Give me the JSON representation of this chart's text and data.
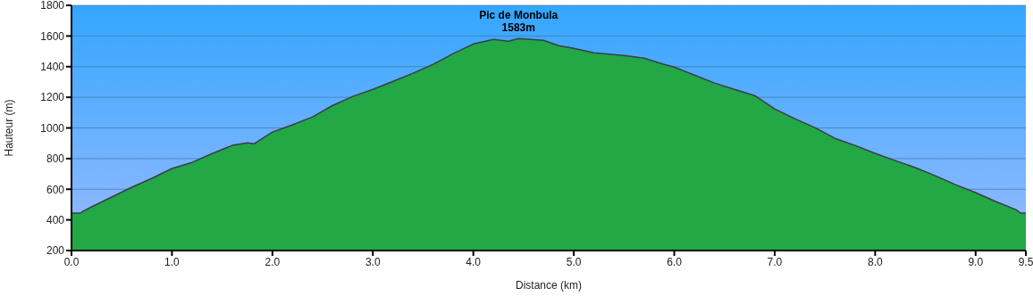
{
  "chart_data": {
    "type": "area",
    "xlabel": "Distance   (km)",
    "ylabel": "Hauteur (m)",
    "x": [
      0,
      0.09,
      0.12,
      0.2,
      0.4,
      0.6,
      0.8,
      1.0,
      1.2,
      1.4,
      1.6,
      1.75,
      1.82,
      2.0,
      2.2,
      2.4,
      2.6,
      2.8,
      3.0,
      3.2,
      3.4,
      3.6,
      3.8,
      4.0,
      4.2,
      4.35,
      4.45,
      4.7,
      4.85,
      5.0,
      5.2,
      5.5,
      5.7,
      5.9,
      6.0,
      6.2,
      6.4,
      6.6,
      6.8,
      7.0,
      7.2,
      7.4,
      7.6,
      7.8,
      8.0,
      8.2,
      8.4,
      8.6,
      8.8,
      9.0,
      9.2,
      9.4,
      9.45,
      9.5
    ],
    "series": [
      {
        "color": "#22a845",
        "values": [
          445,
          445,
          458,
          485,
          549,
          613,
          671,
          735,
          775,
          833,
          886,
          903,
          897,
          973,
          1020,
          1072,
          1147,
          1206,
          1252,
          1304,
          1357,
          1415,
          1485,
          1548,
          1578,
          1566,
          1583,
          1572,
          1537,
          1519,
          1490,
          1473,
          1455,
          1415,
          1397,
          1345,
          1293,
          1252,
          1211,
          1124,
          1060,
          1002,
          932,
          886,
          834,
          787,
          741,
          688,
          630,
          578,
          520,
          467,
          444,
          444
        ]
      }
    ],
    "xlim": [
      0,
      9.5
    ],
    "xticks": [
      {
        "value": 0,
        "label": "0.0"
      },
      {
        "value": 1,
        "label": "1.0"
      },
      {
        "value": 2,
        "label": "2.0"
      },
      {
        "value": 3,
        "label": "3.0"
      },
      {
        "value": 4,
        "label": "4.0"
      },
      {
        "value": 5,
        "label": "5.0"
      },
      {
        "value": 6,
        "label": "6.0"
      },
      {
        "value": 7,
        "label": "7.0"
      },
      {
        "value": 8,
        "label": "8.0"
      },
      {
        "value": 9,
        "label": "9.0"
      },
      {
        "value": 9.5,
        "label": "9.5"
      }
    ],
    "ylim": [
      200,
      1800
    ],
    "yticks": [
      200,
      400,
      600,
      800,
      1000,
      1200,
      1400,
      1600,
      1800
    ],
    "grid": "y",
    "legend": false,
    "marker": "none",
    "line_style": "solid",
    "annotations": [
      {
        "text": "Pic de Monbula",
        "x": 4.45,
        "y": 1583
      },
      {
        "text": "1583m",
        "x": 4.45,
        "y": 1583
      }
    ]
  }
}
